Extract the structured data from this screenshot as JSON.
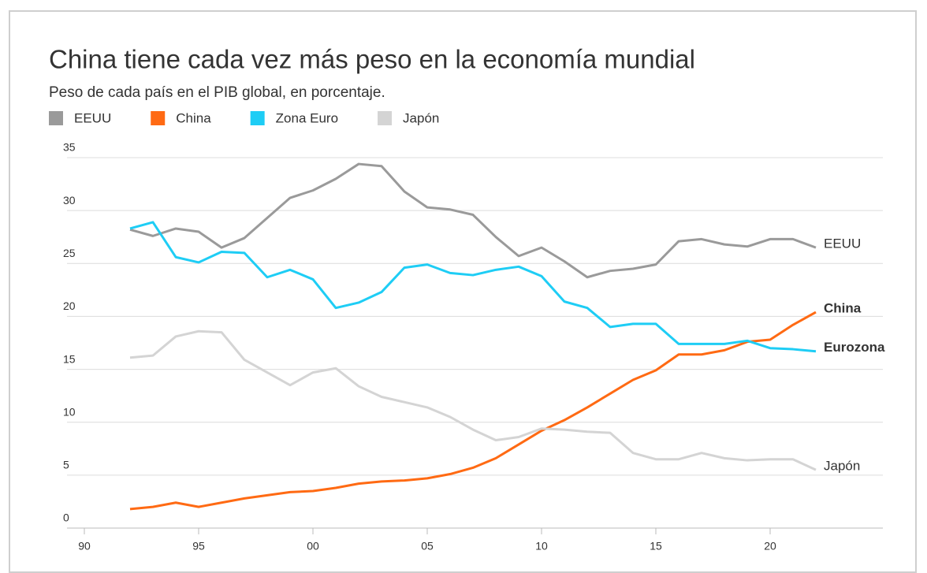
{
  "chart_data": {
    "type": "line",
    "title": "China tiene cada vez más peso en la economía mundial",
    "subtitle": "Peso de cada país en el PIB global, en porcentaje.",
    "x": [
      1992,
      1993,
      1994,
      1995,
      1996,
      1997,
      1998,
      1999,
      2000,
      2001,
      2002,
      2003,
      2004,
      2005,
      2006,
      2007,
      2008,
      2009,
      2010,
      2011,
      2012,
      2013,
      2014,
      2015,
      2016,
      2017,
      2018,
      2019,
      2020,
      2021,
      2022
    ],
    "series": [
      {
        "name": "EEUU",
        "color": "#9a9a9a",
        "end_label": "EEUU",
        "end_label_color": "#666666",
        "values": [
          28.2,
          27.6,
          28.3,
          28.0,
          26.5,
          27.4,
          29.3,
          31.2,
          31.9,
          33.0,
          34.4,
          34.2,
          31.8,
          30.3,
          30.1,
          29.6,
          27.5,
          25.7,
          26.5,
          25.2,
          23.7,
          24.3,
          24.5,
          24.9,
          27.1,
          27.3,
          26.8,
          26.6,
          27.3,
          27.3,
          26.5
        ]
      },
      {
        "name": "China",
        "color": "#ff6a13",
        "end_label": "China",
        "end_label_color": "#ff6a13",
        "values": [
          1.8,
          2.0,
          2.4,
          2.0,
          2.4,
          2.8,
          3.1,
          3.4,
          3.5,
          3.8,
          4.2,
          4.4,
          4.5,
          4.7,
          5.1,
          5.7,
          6.6,
          7.9,
          9.2,
          10.2,
          11.4,
          12.7,
          14.0,
          14.9,
          16.4,
          16.4,
          16.8,
          17.6,
          17.8,
          19.2,
          20.4
        ]
      },
      {
        "name": "Zona Euro",
        "color": "#1ecdf5",
        "end_label": "Eurozona",
        "end_label_color": "#1ecdf5",
        "values": [
          28.3,
          28.9,
          25.6,
          25.1,
          26.1,
          26.0,
          23.7,
          24.4,
          23.5,
          20.8,
          21.3,
          22.3,
          24.6,
          24.9,
          24.1,
          23.9,
          24.4,
          24.7,
          23.8,
          21.4,
          20.8,
          19.0,
          19.3,
          19.3,
          17.4,
          17.4,
          17.4,
          17.7,
          17.0,
          16.9,
          16.7
        ]
      },
      {
        "name": "Japón",
        "color": "#d4d4d4",
        "end_label": "Japón",
        "end_label_color": "#8a8a8a",
        "values": [
          16.1,
          16.3,
          18.1,
          18.6,
          18.5,
          15.9,
          14.7,
          13.5,
          14.7,
          15.1,
          13.4,
          12.4,
          11.9,
          11.4,
          10.5,
          9.3,
          8.3,
          8.6,
          9.4,
          9.3,
          9.1,
          9.0,
          7.1,
          6.5,
          6.5,
          7.1,
          6.6,
          6.4,
          6.5,
          6.5,
          5.5
        ]
      }
    ],
    "xlim": [
      1989,
      2025
    ],
    "xticks": [
      {
        "value": 1990,
        "label": "90"
      },
      {
        "value": 1995,
        "label": "95"
      },
      {
        "value": 2000,
        "label": "00"
      },
      {
        "value": 2005,
        "label": "05"
      },
      {
        "value": 2010,
        "label": "10"
      },
      {
        "value": 2015,
        "label": "15"
      },
      {
        "value": 2020,
        "label": "20"
      }
    ],
    "ylim": [
      0,
      35
    ],
    "yticks": [
      0,
      5,
      10,
      15,
      20,
      25,
      30,
      35
    ],
    "grid": true
  }
}
